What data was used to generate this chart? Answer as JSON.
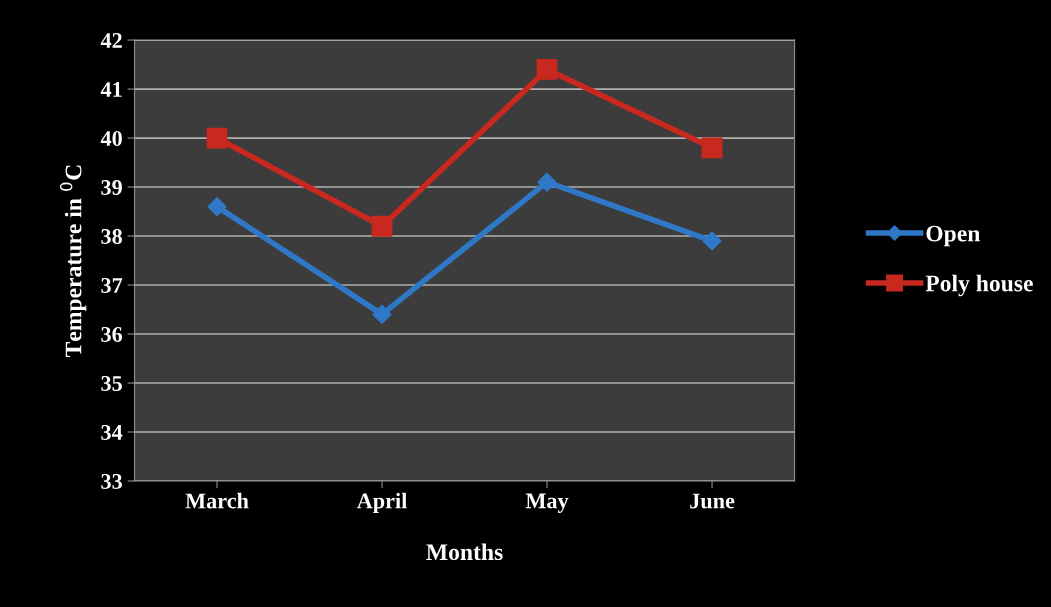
{
  "chart_data": {
    "type": "line",
    "xlabel": "Months",
    "ylabel": "Temperature in $^{0}$C",
    "categories": [
      "March",
      "April",
      "May",
      "June"
    ],
    "series": [
      {
        "name": "Open",
        "color": "#2f78c8",
        "marker": "diamond",
        "values": [
          38.6,
          36.4,
          39.1,
          37.9
        ]
      },
      {
        "name": "Poly house",
        "color": "#c8281e",
        "marker": "square",
        "values": [
          40.0,
          38.2,
          41.4,
          39.8
        ]
      }
    ],
    "ylim": [
      33,
      42
    ],
    "yticks": [
      33,
      34,
      35,
      36,
      37,
      38,
      39,
      40,
      41,
      42
    ],
    "grid": "y",
    "legend": "right"
  }
}
